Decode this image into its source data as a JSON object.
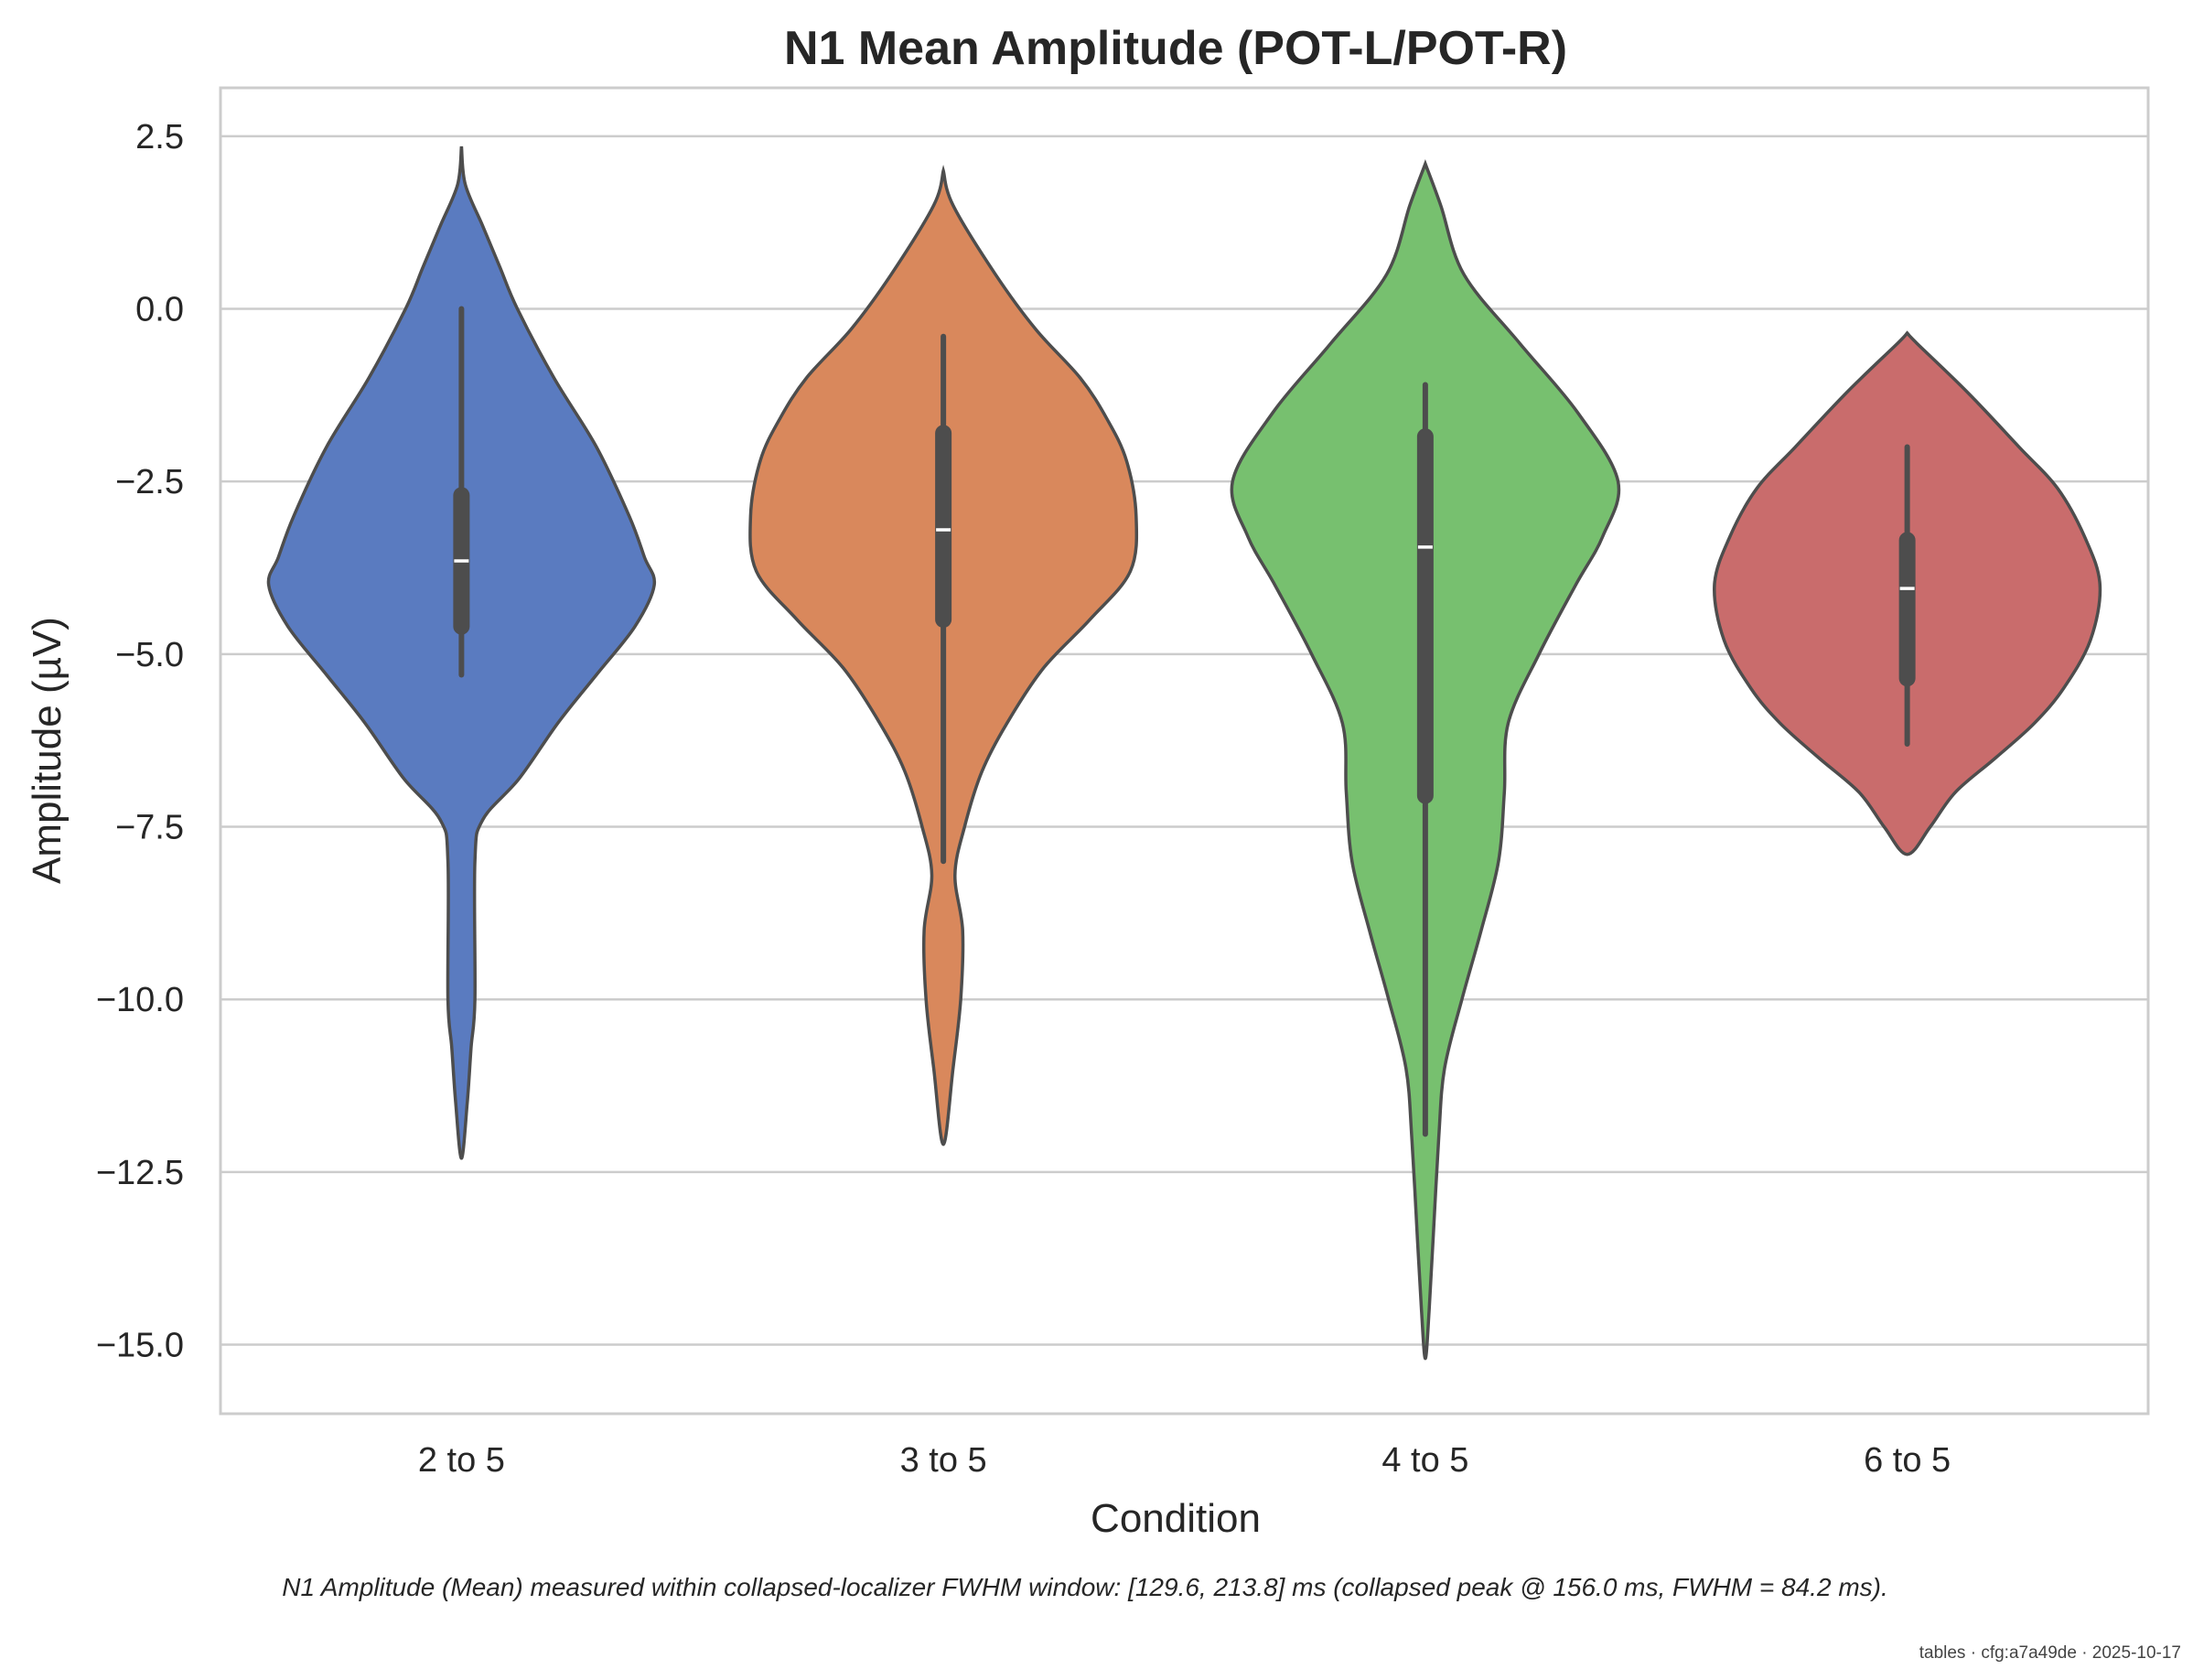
{
  "chart_data": {
    "type": "violin",
    "title": "N1 Mean Amplitude (POT-L/POT-R)",
    "xlabel": "Condition",
    "ylabel": "Amplitude (µV)",
    "ylim": [
      -16,
      3.2
    ],
    "yticks": [
      2.5,
      0.0,
      -2.5,
      -5.0,
      -7.5,
      -10.0,
      -12.5,
      -15.0
    ],
    "ytick_labels": [
      "2.5",
      "0.0",
      "−2.5",
      "−5.0",
      "−7.5",
      "−10.0",
      "−12.5",
      "−15.0"
    ],
    "grid": "horizontal",
    "categories": [
      "2 to 5",
      "3 to 5",
      "4 to 5",
      "6 to 5"
    ],
    "series": [
      {
        "category": "2 to 5",
        "color": "#5a7bc0",
        "median": -3.65,
        "q1": -4.6,
        "q3": -2.7,
        "whisker_low": -5.3,
        "whisker_high": 0.0,
        "density": [
          [
            2.35,
            0.0
          ],
          [
            1.8,
            0.02
          ],
          [
            1.2,
            0.11
          ],
          [
            0.6,
            0.2
          ],
          [
            0.0,
            0.29
          ],
          [
            -1.0,
            0.48
          ],
          [
            -2.0,
            0.7
          ],
          [
            -3.0,
            0.87
          ],
          [
            -3.6,
            0.95
          ],
          [
            -4.0,
            1.0
          ],
          [
            -4.6,
            0.9
          ],
          [
            -5.3,
            0.7
          ],
          [
            -6.0,
            0.5
          ],
          [
            -6.8,
            0.3
          ],
          [
            -7.4,
            0.11
          ],
          [
            -8.0,
            0.07
          ],
          [
            -10.0,
            0.07
          ],
          [
            -10.7,
            0.05
          ],
          [
            -11.5,
            0.03
          ],
          [
            -12.3,
            0.0
          ]
        ]
      },
      {
        "category": "3 to 5",
        "color": "#d9885c",
        "median": -3.2,
        "q1": -4.5,
        "q3": -1.8,
        "whisker_low": -8.0,
        "whisker_high": -0.4,
        "density": [
          [
            2.0,
            0.0
          ],
          [
            1.5,
            0.05
          ],
          [
            0.5,
            0.27
          ],
          [
            -0.3,
            0.48
          ],
          [
            -1.0,
            0.71
          ],
          [
            -1.6,
            0.85
          ],
          [
            -2.2,
            0.95
          ],
          [
            -3.0,
            1.0
          ],
          [
            -3.8,
            0.97
          ],
          [
            -4.5,
            0.76
          ],
          [
            -5.2,
            0.52
          ],
          [
            -6.0,
            0.33
          ],
          [
            -6.7,
            0.2
          ],
          [
            -7.5,
            0.11
          ],
          [
            -8.2,
            0.06
          ],
          [
            -9.0,
            0.1
          ],
          [
            -10.0,
            0.09
          ],
          [
            -11.0,
            0.05
          ],
          [
            -12.1,
            0.0
          ]
        ]
      },
      {
        "category": "4 to 5",
        "color": "#77c06f",
        "median": -3.45,
        "q1": -7.05,
        "q3": -1.85,
        "whisker_low": -11.95,
        "whisker_high": -1.1,
        "density": [
          [
            2.1,
            0.0
          ],
          [
            1.5,
            0.08
          ],
          [
            0.5,
            0.2
          ],
          [
            -0.5,
            0.49
          ],
          [
            -1.5,
            0.79
          ],
          [
            -2.5,
            1.0
          ],
          [
            -3.3,
            0.92
          ],
          [
            -4.0,
            0.78
          ],
          [
            -5.0,
            0.59
          ],
          [
            -6.0,
            0.43
          ],
          [
            -7.0,
            0.41
          ],
          [
            -8.0,
            0.38
          ],
          [
            -9.0,
            0.29
          ],
          [
            -10.0,
            0.19
          ],
          [
            -11.0,
            0.1
          ],
          [
            -12.0,
            0.07
          ],
          [
            -13.5,
            0.04
          ],
          [
            -14.5,
            0.02
          ],
          [
            -15.2,
            0.0
          ]
        ]
      },
      {
        "category": "6 to 5",
        "color": "#c96c6c",
        "median": -4.05,
        "q1": -5.35,
        "q3": -3.35,
        "whisker_low": -6.3,
        "whisker_high": -2.0,
        "density": [
          [
            -0.35,
            0.0
          ],
          [
            -0.5,
            0.05
          ],
          [
            -1.2,
            0.31
          ],
          [
            -2.0,
            0.58
          ],
          [
            -2.6,
            0.78
          ],
          [
            -3.3,
            0.92
          ],
          [
            -4.0,
            1.0
          ],
          [
            -4.8,
            0.95
          ],
          [
            -5.5,
            0.81
          ],
          [
            -6.0,
            0.66
          ],
          [
            -6.5,
            0.46
          ],
          [
            -7.0,
            0.25
          ],
          [
            -7.5,
            0.12
          ],
          [
            -7.9,
            0.0
          ]
        ]
      }
    ],
    "caption": "N1 Amplitude (Mean) measured within collapsed-localizer FWHM window: [129.6, 213.8] ms (collapsed peak @ 156.0 ms, FWHM = 84.2 ms).",
    "footer": "tables · cfg:a7a49de · 2025-10-17"
  }
}
